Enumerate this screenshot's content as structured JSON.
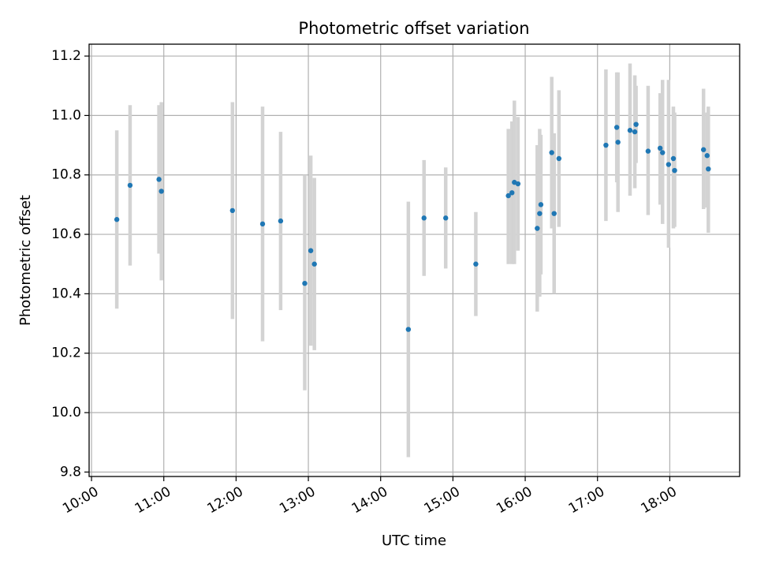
{
  "chart_data": {
    "type": "scatter",
    "title": "Photometric offset variation",
    "xlabel": "UTC time",
    "ylabel": "Photometric offset",
    "x_unit": "UTC time (HH:MM)",
    "xlim": [
      "09:58",
      "18:58"
    ],
    "ylim": [
      9.785,
      11.24
    ],
    "x_ticks": [
      "10:00",
      "11:00",
      "12:00",
      "13:00",
      "14:00",
      "15:00",
      "16:00",
      "17:00",
      "18:00"
    ],
    "y_ticks": [
      9.8,
      10.0,
      10.2,
      10.4,
      10.6,
      10.8,
      11.0,
      11.2
    ],
    "y_tick_labels": [
      "9.8",
      "10.0",
      "10.2",
      "10.4",
      "10.6",
      "10.8",
      "11.0",
      "11.2"
    ],
    "grid": true,
    "colors": {
      "point": "#1f77b4",
      "error_bar": "#d3d3d3",
      "grid": "#b0b0b0"
    },
    "series": [
      {
        "marker": "point-with-error-bar",
        "points": [
          {
            "t": "10:21",
            "y": 10.65,
            "lo": 10.35,
            "hi": 10.95
          },
          {
            "t": "10:32",
            "y": 10.765,
            "lo": 10.495,
            "hi": 11.035
          },
          {
            "t": "10:56",
            "y": 10.785,
            "lo": 10.535,
            "hi": 11.035
          },
          {
            "t": "10:58",
            "y": 10.745,
            "lo": 10.445,
            "hi": 11.045
          },
          {
            "t": "11:57",
            "y": 10.68,
            "lo": 10.315,
            "hi": 11.045
          },
          {
            "t": "12:22",
            "y": 10.635,
            "lo": 10.24,
            "hi": 11.03
          },
          {
            "t": "12:37",
            "y": 10.645,
            "lo": 10.345,
            "hi": 10.945
          },
          {
            "t": "12:57",
            "y": 10.435,
            "lo": 10.075,
            "hi": 10.8
          },
          {
            "t": "13:02",
            "y": 10.545,
            "lo": 10.225,
            "hi": 10.865
          },
          {
            "t": "13:05",
            "y": 10.5,
            "lo": 10.21,
            "hi": 10.79
          },
          {
            "t": "14:23",
            "y": 10.28,
            "lo": 9.85,
            "hi": 10.71
          },
          {
            "t": "14:36",
            "y": 10.655,
            "lo": 10.46,
            "hi": 10.85
          },
          {
            "t": "14:54",
            "y": 10.655,
            "lo": 10.485,
            "hi": 10.825
          },
          {
            "t": "15:19",
            "y": 10.5,
            "lo": 10.325,
            "hi": 10.675
          },
          {
            "t": "15:46",
            "y": 10.73,
            "lo": 10.5,
            "hi": 10.955
          },
          {
            "t": "15:49",
            "y": 10.74,
            "lo": 10.5,
            "hi": 10.98
          },
          {
            "t": "15:51",
            "y": 10.775,
            "lo": 10.5,
            "hi": 11.05
          },
          {
            "t": "15:54",
            "y": 10.77,
            "lo": 10.545,
            "hi": 10.995
          },
          {
            "t": "16:10",
            "y": 10.62,
            "lo": 10.34,
            "hi": 10.9
          },
          {
            "t": "16:12",
            "y": 10.67,
            "lo": 10.39,
            "hi": 10.955
          },
          {
            "t": "16:13",
            "y": 10.7,
            "lo": 10.465,
            "hi": 10.935
          },
          {
            "t": "16:22",
            "y": 10.875,
            "lo": 10.62,
            "hi": 11.13
          },
          {
            "t": "16:24",
            "y": 10.67,
            "lo": 10.4,
            "hi": 10.94
          },
          {
            "t": "16:28",
            "y": 10.855,
            "lo": 10.625,
            "hi": 11.085
          },
          {
            "t": "17:07",
            "y": 10.9,
            "lo": 10.645,
            "hi": 11.155
          },
          {
            "t": "17:16",
            "y": 10.96,
            "lo": 10.775,
            "hi": 11.145
          },
          {
            "t": "17:17",
            "y": 10.91,
            "lo": 10.675,
            "hi": 11.145
          },
          {
            "t": "17:27",
            "y": 10.95,
            "lo": 10.73,
            "hi": 11.175
          },
          {
            "t": "17:31",
            "y": 10.945,
            "lo": 10.755,
            "hi": 11.135
          },
          {
            "t": "17:32",
            "y": 10.97,
            "lo": 10.84,
            "hi": 11.1
          },
          {
            "t": "17:42",
            "y": 10.88,
            "lo": 10.665,
            "hi": 11.1
          },
          {
            "t": "17:52",
            "y": 10.89,
            "lo": 10.7,
            "hi": 11.075
          },
          {
            "t": "17:54",
            "y": 10.875,
            "lo": 10.635,
            "hi": 11.12
          },
          {
            "t": "17:59",
            "y": 10.835,
            "lo": 10.555,
            "hi": 11.12
          },
          {
            "t": "18:03",
            "y": 10.855,
            "lo": 10.62,
            "hi": 11.03
          },
          {
            "t": "18:04",
            "y": 10.815,
            "lo": 10.625,
            "hi": 11.01
          },
          {
            "t": "18:28",
            "y": 10.885,
            "lo": 10.685,
            "hi": 11.09
          },
          {
            "t": "18:31",
            "y": 10.865,
            "lo": 10.69,
            "hi": 11.01
          },
          {
            "t": "18:32",
            "y": 10.82,
            "lo": 10.605,
            "hi": 11.03
          }
        ]
      }
    ]
  }
}
